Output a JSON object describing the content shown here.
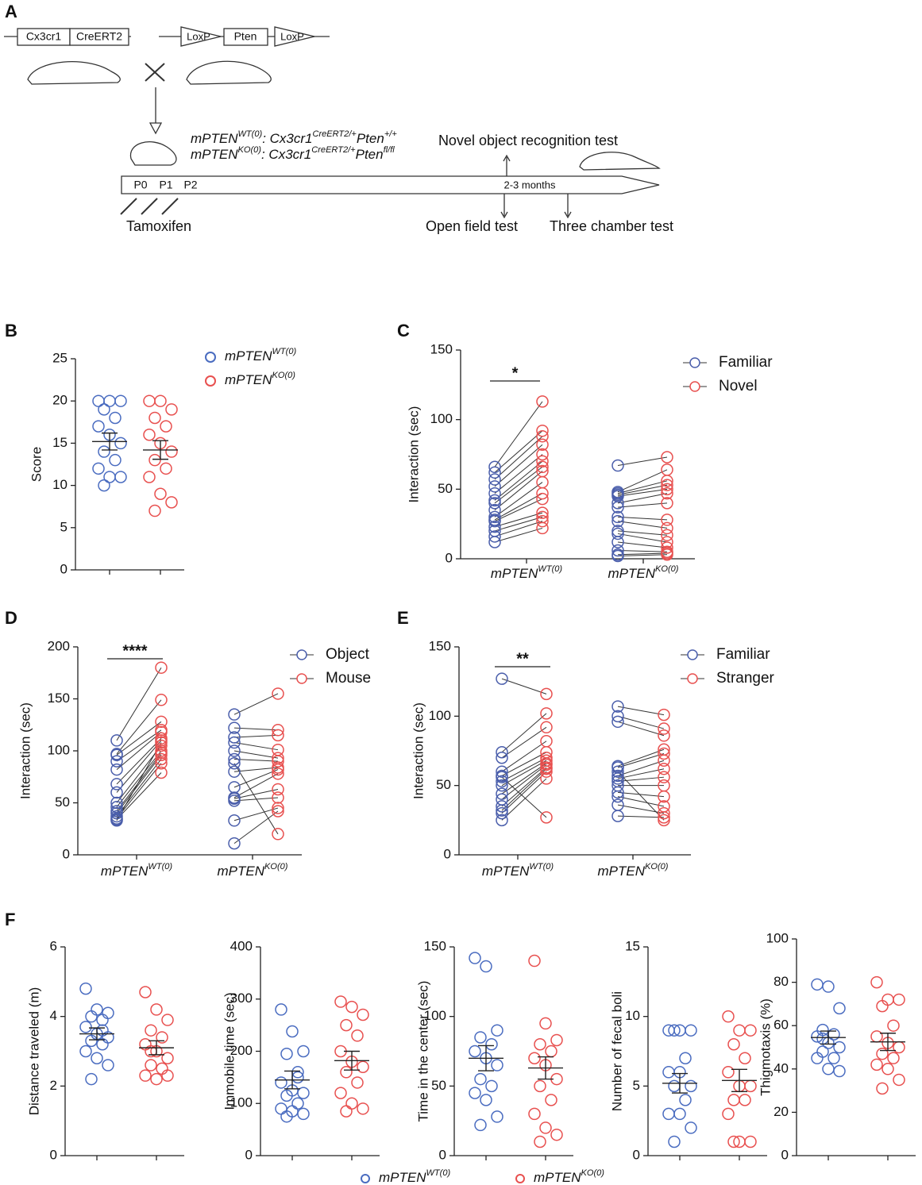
{
  "diagram": {
    "label": "A",
    "constructs": [
      "Cx3cr1",
      "CreERT2",
      "LoxP",
      "Pten",
      "LoxP"
    ],
    "genotypes": [
      {
        "color": "#1f7bbf",
        "parts": [
          {
            "text": "mPTEN"
          },
          {
            "text": "WT(0)",
            "sup": true
          },
          {
            "text": ": Cx3cr1"
          },
          {
            "text": "CreERT2/+",
            "sup": true
          },
          {
            "text": "Pten"
          },
          {
            "text": "+/+",
            "sup": true
          }
        ]
      },
      {
        "color": "#e8262b",
        "parts": [
          {
            "text": "mPTEN"
          },
          {
            "text": "KO(0)",
            "sup": true
          },
          {
            "text": ": Cx3cr1"
          },
          {
            "text": "CreERT2/+",
            "sup": true
          },
          {
            "text": "Pten"
          },
          {
            "text": "fl/fl",
            "sup": true
          }
        ]
      }
    ],
    "timepoints": [
      "P0",
      "P1",
      "P2",
      "2-3 months"
    ],
    "tests": [
      "Novel object recognition test",
      "Open field test",
      "Three chamber test"
    ],
    "treatment": "Tamoxifen"
  },
  "chart_data": [
    {
      "type": "dot",
      "label": "B",
      "ylabel": "Score",
      "ylim": [
        0,
        25
      ],
      "yticks": [
        0,
        5,
        10,
        15,
        20,
        25
      ],
      "series": [
        {
          "name": [
            {
              "text": "mPTEN"
            },
            {
              "text": "WT(0)",
              "sup": true
            }
          ],
          "text_color": "#1f7bbf",
          "color": "#4a6cc0",
          "values": [
            20,
            20,
            20,
            19,
            18,
            17,
            16,
            15,
            14,
            13,
            12,
            11,
            11,
            10
          ]
        },
        {
          "name": [
            {
              "text": "mPTEN"
            },
            {
              "text": "KO(0)",
              "sup": true
            }
          ],
          "text_color": "#e8262b",
          "color": "#e8504f",
          "values": [
            20,
            20,
            19,
            18,
            17,
            16,
            15,
            14,
            13,
            12,
            11,
            9,
            8,
            7
          ]
        }
      ],
      "means": [
        15.2,
        14.2
      ],
      "sems": [
        1.0,
        1.1
      ]
    },
    {
      "type": "paired",
      "label": "C",
      "ylabel": "Interaction (sec)",
      "ylim": [
        0,
        150
      ],
      "yticks": [
        0,
        50,
        100,
        150
      ],
      "annotation": "*",
      "categories": [
        {
          "name": [
            {
              "text": "mPTEN"
            },
            {
              "text": "WT(0)",
              "sup": true
            }
          ],
          "color": "#1f7bbf"
        },
        {
          "name": [
            {
              "text": "mPTEN"
            },
            {
              "text": "KO(0)",
              "sup": true
            }
          ],
          "color": "#e8262b"
        }
      ],
      "series": [
        {
          "name": "Familiar",
          "color": "#4a5eab",
          "values": [
            [
              66,
              62,
              57,
              52,
              47,
              42,
              40,
              35,
              30,
              28,
              27,
              23,
              20,
              16,
              12
            ],
            [
              67,
              48,
              47,
              46,
              45,
              40,
              37,
              30,
              27,
              20,
              18,
              12,
              6,
              3,
              2
            ]
          ]
        },
        {
          "name": "Novel",
          "color": "#e8504f",
          "values": [
            [
              113,
              92,
              88,
              82,
              75,
              70,
              66,
              63,
              55,
              47,
              43,
              33,
              30,
              27,
              22
            ],
            [
              73,
              64,
              56,
              53,
              50,
              47,
              40,
              28,
              22,
              17,
              12,
              8,
              5,
              4,
              3
            ]
          ]
        }
      ]
    },
    {
      "type": "paired",
      "label": "D",
      "ylabel": "Interaction (sec)",
      "ylim": [
        0,
        200
      ],
      "yticks": [
        0,
        50,
        100,
        150,
        200
      ],
      "annotation": "****",
      "categories": [
        {
          "name": [
            {
              "text": "mPTEN"
            },
            {
              "text": "WT(0)",
              "sup": true
            }
          ],
          "color": "#1f7bbf"
        },
        {
          "name": [
            {
              "text": "mPTEN"
            },
            {
              "text": "KO(0)",
              "sup": true
            }
          ],
          "color": "#e8262b"
        }
      ],
      "series": [
        {
          "name": "Object",
          "color": "#4a5eab",
          "values": [
            [
              110,
              97,
              96,
              90,
              82,
              68,
              60,
              50,
              46,
              42,
              40,
              37,
              35,
              34,
              33
            ],
            [
              135,
              122,
              113,
              108,
              100,
              92,
              80,
              65,
              55,
              54,
              52,
              33,
              11,
              88
            ]
          ]
        },
        {
          "name": "Mouse",
          "color": "#e8504f",
          "values": [
            [
              180,
              149,
              128,
              120,
              118,
              112,
              110,
              105,
              100,
              98,
              96,
              92,
              88,
              79,
              108
            ],
            [
              155,
              120,
              115,
              101,
              93,
              90,
              84,
              82,
              78,
              63,
              55,
              45,
              42,
              20
            ]
          ]
        }
      ]
    },
    {
      "type": "paired",
      "label": "E",
      "ylabel": "Interaction (sec)",
      "ylim": [
        0,
        150
      ],
      "yticks": [
        0,
        50,
        100,
        150
      ],
      "annotation": "**",
      "categories": [
        {
          "name": [
            {
              "text": "mPTEN"
            },
            {
              "text": "WT(0)",
              "sup": true
            }
          ],
          "color": "#1f7bbf"
        },
        {
          "name": [
            {
              "text": "mPTEN"
            },
            {
              "text": "KO(0)",
              "sup": true
            }
          ],
          "color": "#e8262b"
        }
      ],
      "series": [
        {
          "name": "Familiar",
          "color": "#4a5eab",
          "values": [
            [
              127,
              74,
              70,
              60,
              57,
              53,
              50,
              44,
              40,
              35,
              32,
              30,
              25,
              56
            ],
            [
              107,
              100,
              96,
              64,
              63,
              57,
              55,
              53,
              50,
              45,
              42,
              36,
              28,
              60
            ]
          ]
        },
        {
          "name": "Stranger",
          "color": "#e8504f",
          "values": [
            [
              116,
              102,
              92,
              82,
              74,
              70,
              68,
              66,
              65,
              63,
              62,
              60,
              55,
              27
            ],
            [
              101,
              91,
              86,
              76,
              73,
              68,
              62,
              56,
              50,
              42,
              35,
              30,
              27,
              25
            ]
          ]
        }
      ]
    },
    {
      "type": "dot",
      "ylabel": "Distance traveled (m)",
      "ylim": [
        0,
        6
      ],
      "yticks": [
        0,
        2,
        4,
        6
      ],
      "series": [
        {
          "color": "#4a6cc0",
          "values": [
            4.8,
            4.2,
            4.1,
            4.0,
            3.9,
            3.7,
            3.5,
            3.4,
            3.3,
            3.2,
            3.0,
            2.8,
            2.6,
            2.2,
            3.6
          ]
        },
        {
          "color": "#e8504f",
          "values": [
            4.7,
            4.2,
            3.9,
            3.6,
            3.4,
            3.2,
            3.0,
            2.8,
            2.6,
            2.5,
            2.3,
            2.2,
            2.3,
            3.0
          ]
        }
      ],
      "means": [
        3.5,
        3.1
      ],
      "sems": [
        0.17,
        0.2
      ]
    },
    {
      "type": "dot",
      "ylabel": "Immobile time (sec)",
      "ylim": [
        0,
        400
      ],
      "yticks": [
        0,
        100,
        200,
        300,
        400
      ],
      "series": [
        {
          "color": "#4a6cc0",
          "values": [
            280,
            238,
            200,
            195,
            160,
            140,
            125,
            120,
            115,
            100,
            90,
            85,
            80,
            75,
            150
          ]
        },
        {
          "color": "#e8504f",
          "values": [
            295,
            285,
            270,
            250,
            230,
            200,
            180,
            170,
            160,
            140,
            120,
            100,
            90,
            85
          ]
        }
      ],
      "means": [
        145,
        182
      ],
      "sems": [
        17,
        18
      ]
    },
    {
      "type": "dot",
      "ylabel": "Time in the center (sec)",
      "ylim": [
        0,
        150
      ],
      "yticks": [
        0,
        50,
        100,
        150
      ],
      "series": [
        {
          "color": "#4a6cc0",
          "values": [
            142,
            136,
            90,
            85,
            80,
            75,
            70,
            65,
            55,
            50,
            45,
            40,
            28,
            22
          ]
        },
        {
          "color": "#e8504f",
          "values": [
            140,
            95,
            83,
            80,
            75,
            70,
            65,
            55,
            50,
            40,
            30,
            20,
            15,
            10
          ]
        }
      ],
      "means": [
        70,
        63
      ],
      "sems": [
        9,
        8
      ]
    },
    {
      "type": "dot",
      "ylabel": "Number of fecal boli",
      "ylim": [
        0,
        15
      ],
      "yticks": [
        0,
        5,
        10,
        15
      ],
      "series": [
        {
          "color": "#4a6cc0",
          "values": [
            9,
            9,
            9,
            9,
            7,
            6,
            6,
            5,
            5,
            4,
            3,
            3,
            2,
            1
          ]
        },
        {
          "color": "#e8504f",
          "values": [
            10,
            9,
            9,
            8,
            7,
            6,
            5,
            5,
            4,
            4,
            3,
            1,
            1,
            1
          ]
        }
      ],
      "means": [
        5.2,
        5.4
      ],
      "sems": [
        0.7,
        0.8
      ]
    },
    {
      "type": "dot",
      "ylabel": "Thigmotaxis (%)",
      "ylim": [
        0,
        100
      ],
      "yticks": [
        0,
        20,
        40,
        60,
        80,
        100
      ],
      "series": [
        {
          "color": "#4a6cc0",
          "values": [
            79,
            78,
            68,
            58,
            56,
            55,
            52,
            50,
            48,
            45,
            45,
            40,
            39,
            54
          ]
        },
        {
          "color": "#e8504f",
          "values": [
            80,
            72,
            72,
            69,
            60,
            55,
            52,
            50,
            47,
            45,
            42,
            40,
            35,
            31
          ]
        }
      ],
      "means": [
        54.5,
        52.5
      ],
      "sems": [
        3,
        4
      ]
    }
  ],
  "panel_f": {
    "label": "F",
    "legend": [
      {
        "name": [
          {
            "text": "mPTEN"
          },
          {
            "text": "WT(0)",
            "sup": true
          }
        ],
        "text_color": "#1f7bbf",
        "color": "#4a6cc0"
      },
      {
        "name": [
          {
            "text": "mPTEN"
          },
          {
            "text": "KO(0)",
            "sup": true
          }
        ],
        "text_color": "#e8262b",
        "color": "#e8504f"
      }
    ]
  }
}
